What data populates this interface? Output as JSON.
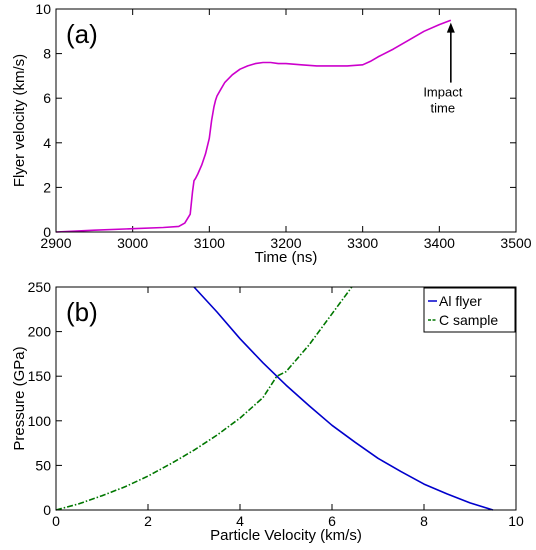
{
  "chart_data": [
    {
      "type": "line",
      "panel_label": "(a)",
      "xlabel": "Time (ns)",
      "ylabel": "Flyer velocity (km/s)",
      "xlim": [
        2900,
        3500
      ],
      "ylim": [
        0,
        10
      ],
      "xticks": [
        2900,
        3000,
        3100,
        3200,
        3300,
        3400,
        3500
      ],
      "yticks": [
        0,
        2,
        4,
        6,
        8,
        10
      ],
      "series": [
        {
          "color": "#cc00cc",
          "x": [
            2900,
            2950,
            3000,
            3040,
            3060,
            3068,
            3075,
            3078,
            3080,
            3082,
            3085,
            3090,
            3095,
            3100,
            3103,
            3106,
            3108,
            3110,
            3115,
            3120,
            3130,
            3140,
            3150,
            3160,
            3170,
            3180,
            3190,
            3200,
            3220,
            3240,
            3260,
            3280,
            3300,
            3310,
            3320,
            3340,
            3360,
            3380,
            3400,
            3415
          ],
          "y": [
            0.0,
            0.08,
            0.15,
            0.2,
            0.25,
            0.4,
            0.8,
            1.8,
            2.3,
            2.4,
            2.6,
            3.0,
            3.5,
            4.2,
            5.0,
            5.6,
            5.9,
            6.1,
            6.4,
            6.7,
            7.05,
            7.3,
            7.45,
            7.55,
            7.6,
            7.6,
            7.55,
            7.55,
            7.5,
            7.45,
            7.45,
            7.45,
            7.5,
            7.65,
            7.85,
            8.2,
            8.6,
            9.0,
            9.3,
            9.5
          ]
        }
      ],
      "annotations": [
        {
          "text_line1": "Impact",
          "text_line2": "time",
          "arrow_x": 3415,
          "arrow_y_from": 6.7,
          "arrow_y_to": 9.3
        }
      ]
    },
    {
      "type": "line",
      "panel_label": "(b)",
      "xlabel": "Particle Velocity (km/s)",
      "ylabel": "Pressure (GPa)",
      "xlim": [
        0,
        10
      ],
      "ylim": [
        0,
        250
      ],
      "xticks": [
        0,
        2,
        4,
        6,
        8,
        10
      ],
      "yticks": [
        0,
        50,
        100,
        150,
        200,
        250
      ],
      "legend_position": "top-right",
      "series": [
        {
          "name": "Al flyer",
          "color": "#0000cc",
          "style": "solid",
          "x": [
            3.0,
            3.5,
            4.0,
            4.5,
            4.8,
            5.0,
            5.5,
            6.0,
            6.5,
            7.0,
            7.5,
            8.0,
            8.5,
            9.0,
            9.5
          ],
          "y": [
            250,
            222,
            192,
            165,
            150,
            140,
            117,
            95,
            76,
            58,
            43,
            29,
            18,
            8,
            0
          ]
        },
        {
          "name": "C sample",
          "color": "#007700",
          "style": "dash-dot",
          "x": [
            0,
            0.5,
            1.0,
            1.5,
            2.0,
            2.5,
            3.0,
            3.5,
            4.0,
            4.5,
            4.8,
            5.0,
            5.5,
            6.0,
            6.43
          ],
          "y": [
            0,
            7,
            16,
            26,
            38,
            52,
            67,
            84,
            103,
            126,
            150,
            155,
            185,
            220,
            250
          ]
        }
      ]
    }
  ]
}
